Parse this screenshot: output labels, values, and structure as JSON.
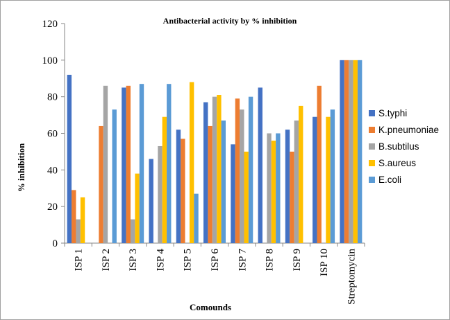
{
  "chart_data": {
    "type": "bar",
    "title": "Antibacterial activity by % inhibition",
    "xlabel": "Comounds",
    "ylabel": "% inhibition",
    "ylim": [
      0,
      120
    ],
    "yticks": [
      "0",
      "20",
      "40",
      "60",
      "80",
      "100",
      "120"
    ],
    "categories": [
      "ISP 1",
      "ISP 2",
      "ISP 3",
      "ISP 4",
      "ISP 5",
      "ISP 6",
      "ISP 7",
      "ISP 8",
      "ISP 9",
      "ISP 10",
      "Streptomycin"
    ],
    "series": [
      {
        "name": "S.typhi",
        "color": "#4472C4",
        "values": [
          92,
          0,
          85,
          46,
          62,
          77,
          54,
          85,
          62,
          69,
          100
        ]
      },
      {
        "name": "K.pneumoniae",
        "color": "#ED7D31",
        "values": [
          29,
          64,
          86,
          0,
          57,
          64,
          79,
          0,
          50,
          86,
          100
        ]
      },
      {
        "name": "B.subtilus",
        "color": "#A5A5A5",
        "values": [
          13,
          86,
          13,
          53,
          0,
          80,
          73,
          60,
          67,
          0,
          100
        ]
      },
      {
        "name": "S.aureus",
        "color": "#FFC000",
        "values": [
          25,
          0,
          38,
          69,
          88,
          81,
          50,
          56,
          75,
          69,
          100
        ]
      },
      {
        "name": "E.coli",
        "color": "#5B9BD5",
        "values": [
          0,
          73,
          87,
          87,
          27,
          67,
          80,
          60,
          0,
          73,
          100
        ]
      }
    ],
    "legend_position": "right",
    "grid": false
  }
}
